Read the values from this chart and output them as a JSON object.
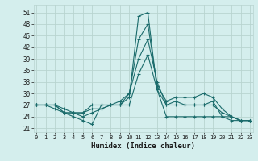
{
  "xlabel": "Humidex (Indice chaleur)",
  "bg_color": "#d4eeed",
  "grid_color": "#b8d4d0",
  "line_color": "#1a6b6b",
  "x_ticks": [
    0,
    1,
    2,
    3,
    4,
    5,
    6,
    7,
    8,
    9,
    10,
    11,
    12,
    13,
    14,
    15,
    16,
    17,
    18,
    19,
    20,
    21,
    22,
    23
  ],
  "y_ticks": [
    21,
    24,
    27,
    30,
    33,
    36,
    39,
    42,
    45,
    48,
    51
  ],
  "xlim": [
    -0.3,
    23.3
  ],
  "ylim": [
    20,
    53
  ],
  "series": [
    [
      27,
      27,
      26,
      25,
      24,
      23,
      22,
      27,
      27,
      27,
      29,
      50,
      51,
      31,
      27,
      27,
      27,
      27,
      27,
      28,
      24,
      23,
      23,
      23
    ],
    [
      27,
      27,
      27,
      25,
      25,
      24,
      25,
      26,
      27,
      27,
      30,
      44,
      48,
      32,
      28,
      29,
      29,
      29,
      30,
      29,
      26,
      24,
      23,
      23
    ],
    [
      27,
      27,
      27,
      25,
      25,
      25,
      27,
      27,
      27,
      28,
      30,
      39,
      44,
      33,
      27,
      28,
      27,
      27,
      27,
      27,
      25,
      24,
      23,
      23
    ],
    [
      27,
      27,
      27,
      26,
      25,
      25,
      26,
      26,
      27,
      27,
      27,
      35,
      40,
      31,
      24,
      24,
      24,
      24,
      24,
      24,
      24,
      24,
      23,
      23
    ]
  ]
}
